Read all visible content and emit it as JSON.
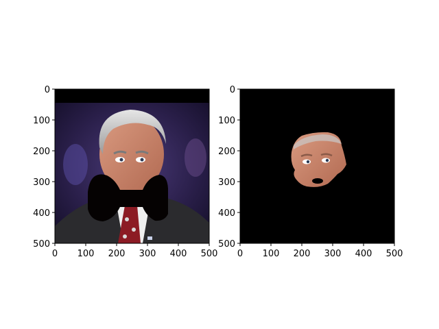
{
  "chart_data": [
    {
      "type": "image",
      "title": "",
      "xlabel": "",
      "ylabel": "",
      "xlim": [
        0,
        500
      ],
      "ylim": [
        500,
        0
      ],
      "xticks": [
        0,
        100,
        200,
        300,
        400,
        500
      ],
      "yticks": [
        0,
        100,
        200,
        300,
        400,
        500
      ],
      "xtick_labels": [
        "0",
        "100",
        "200",
        "300",
        "400",
        "500"
      ],
      "ytick_labels": [
        "0",
        "100",
        "200",
        "300",
        "400",
        "500"
      ],
      "grid": false,
      "content": {
        "background_color": "#2a1f4a",
        "subject": "man with gray hair in dark suit, white shirt and red patterned tie",
        "occluder": "black bow-tie shaped mask over lower face",
        "occluder_color": "#050202"
      }
    },
    {
      "type": "image",
      "title": "",
      "xlabel": "",
      "ylabel": "",
      "xlim": [
        0,
        500
      ],
      "ylim": [
        500,
        0
      ],
      "xticks": [
        0,
        100,
        200,
        300,
        400,
        500
      ],
      "yticks": [
        0,
        100,
        200,
        300,
        400,
        500
      ],
      "xtick_labels": [
        "0",
        "100",
        "200",
        "300",
        "400",
        "500"
      ],
      "ytick_labels": [
        "0",
        "100",
        "200",
        "300",
        "400",
        "500"
      ],
      "grid": false,
      "content": {
        "background_color": "#000000",
        "subject": "segmented face region only, on black background"
      }
    }
  ]
}
